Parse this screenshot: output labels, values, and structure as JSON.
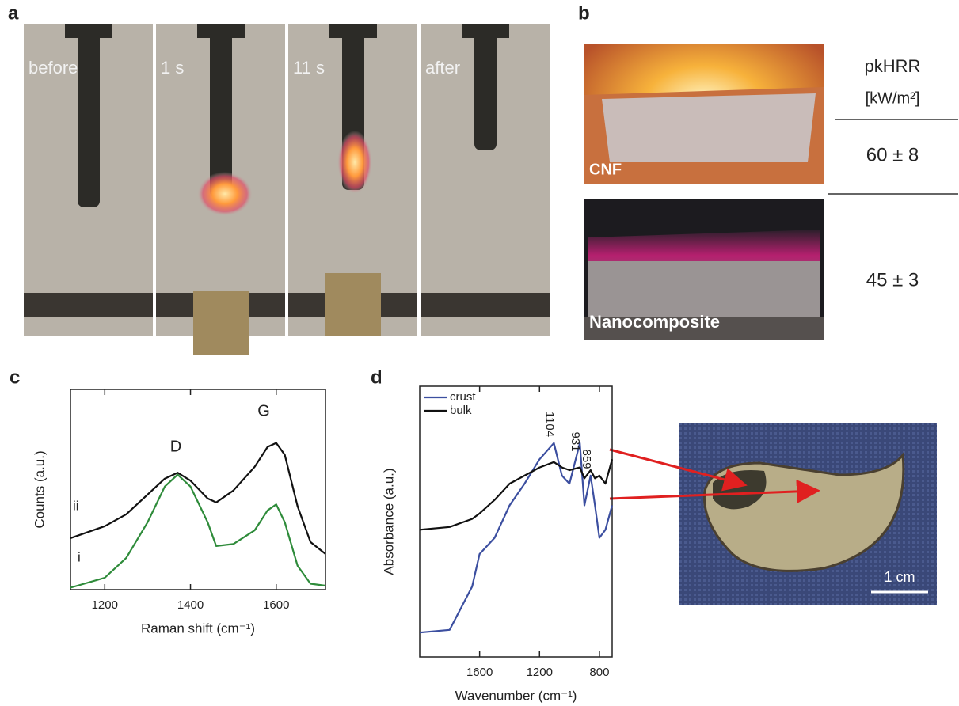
{
  "panel_labels": [
    "a",
    "b",
    "c",
    "d"
  ],
  "panel_a": {
    "frames": [
      "before",
      "1 s",
      "11 s",
      "after"
    ]
  },
  "panel_b": {
    "photos": [
      "CNF",
      "Nanocomposite"
    ],
    "table": {
      "header": [
        "pkHRR",
        "[kW/m²]"
      ],
      "rows": [
        "60 ± 8",
        "45 ± 3"
      ]
    }
  },
  "panel_d_photo": {
    "scale_bar": "1 cm"
  },
  "chart_data": [
    {
      "type": "line",
      "x_label": "Raman shift (cm⁻¹)",
      "y_label": "Counts (a.u.)",
      "annotations": [
        "D",
        "G"
      ],
      "x": [
        1120,
        1200,
        1250,
        1300,
        1340,
        1370,
        1400,
        1440,
        1460,
        1500,
        1550,
        1580,
        1600,
        1620,
        1650,
        1680,
        1715
      ],
      "series": [
        {
          "name": "ii",
          "color": "#111111",
          "values": [
            2.6,
            3.2,
            3.8,
            4.8,
            5.6,
            5.9,
            5.5,
            4.6,
            4.4,
            5.0,
            6.2,
            7.2,
            7.4,
            6.8,
            4.2,
            2.4,
            1.8
          ]
        },
        {
          "name": "i",
          "color": "#2e8b3a",
          "values": [
            0.1,
            0.6,
            1.6,
            3.4,
            5.2,
            5.8,
            5.2,
            3.4,
            2.2,
            2.3,
            3.0,
            4.0,
            4.3,
            3.4,
            1.2,
            0.3,
            0.2
          ]
        }
      ],
      "xlim": [
        1120,
        1715
      ],
      "xticks": [
        1200,
        1400,
        1600
      ],
      "ylim": [
        0,
        10.1
      ]
    },
    {
      "type": "line",
      "x_label": "Wavenumber (cm⁻¹)",
      "y_label": "Absorbance (a.u.)",
      "legend": "upper left",
      "peaks": [
        1104,
        931,
        859
      ],
      "x": [
        2000,
        1800,
        1650,
        1600,
        1500,
        1400,
        1300,
        1200,
        1104,
        1050,
        1000,
        931,
        900,
        859,
        830,
        800,
        760,
        715
      ],
      "series": [
        {
          "name": "crust",
          "color": "#3c4fa0",
          "values": [
            0.9,
            1.0,
            2.6,
            3.8,
            4.4,
            5.6,
            6.4,
            7.3,
            7.9,
            6.7,
            6.4,
            7.9,
            5.6,
            6.7,
            5.6,
            4.4,
            4.7,
            5.6
          ]
        },
        {
          "name": "bulk",
          "color": "#111111",
          "values": [
            4.7,
            4.8,
            5.1,
            5.3,
            5.8,
            6.4,
            6.7,
            7.0,
            7.2,
            7.0,
            6.9,
            7.0,
            6.6,
            6.9,
            6.6,
            6.7,
            6.4,
            7.3
          ]
        }
      ],
      "xlim": [
        2000,
        715
      ],
      "xticks": [
        1600,
        1200,
        800
      ],
      "ylim": [
        0,
        10
      ]
    }
  ]
}
